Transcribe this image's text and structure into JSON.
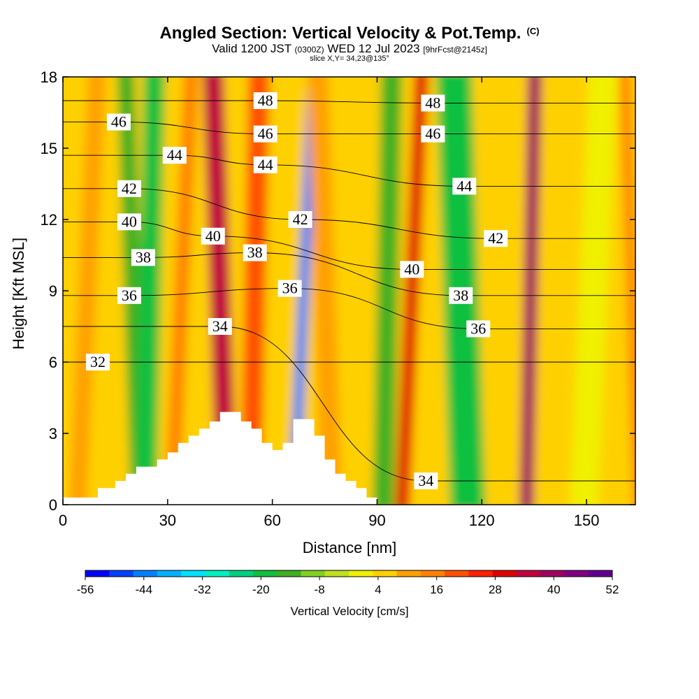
{
  "header": {
    "title": "Angled Section: Vertical Velocity & Pot.Temp.",
    "title_tag": "(C)",
    "valid_prefix": "Valid 1200 JST",
    "valid_utc": "(0300Z)",
    "valid_date": "WED 12 Jul 2023",
    "forecast_tag": "[9hrFcst@2145z]",
    "slice": "slice X,Y= 34,23@135°"
  },
  "chart_data": {
    "type": "heatmap",
    "title": "Angled Section: Vertical Velocity & Pot.Temp.",
    "xlabel": "Distance [nm]",
    "ylabel": "Height [Kft MSL]",
    "xlim": [
      0,
      164
    ],
    "ylim": [
      0,
      18
    ],
    "xticks": [
      0,
      30,
      60,
      90,
      120,
      150
    ],
    "yticks": [
      0,
      3,
      6,
      9,
      12,
      15,
      18
    ],
    "grid": false,
    "colorbar": {
      "label": "Vertical Velocity [cm/s]",
      "ticks": [
        -56,
        -44,
        -32,
        -20,
        -8,
        4,
        16,
        28,
        40,
        52
      ],
      "min": -56,
      "max": 52,
      "colors": [
        "#0000ff",
        "#0040ff",
        "#0080ff",
        "#00b0ff",
        "#00e0ff",
        "#00f0c0",
        "#00d080",
        "#10c040",
        "#40b020",
        "#80d020",
        "#c0e020",
        "#f0f000",
        "#ffd000",
        "#ffa000",
        "#ff8000",
        "#ff5000",
        "#ff2000",
        "#e00000",
        "#c00040",
        "#a00060",
        "#800080",
        "#600090"
      ]
    },
    "series": [
      {
        "name": "Vertical Velocity",
        "bands": [
          {
            "x": 7,
            "w": 5,
            "v": 10
          },
          {
            "x": 20,
            "w": 5,
            "v": -14
          },
          {
            "x": 25,
            "w": 6,
            "v": -18
          },
          {
            "x": 34,
            "w": 4,
            "v": 14
          },
          {
            "x": 45,
            "w": 6,
            "v": 34
          },
          {
            "x": 55,
            "w": 6,
            "v": 22
          },
          {
            "x": 69,
            "w": 3,
            "v": -42
          },
          {
            "x": 75,
            "w": 6,
            "v": 8
          },
          {
            "x": 93,
            "w": 6,
            "v": -16
          },
          {
            "x": 100,
            "w": 4,
            "v": 30
          },
          {
            "x": 114,
            "w": 10,
            "v": -20
          },
          {
            "x": 134,
            "w": 4,
            "v": 42
          },
          {
            "x": 152,
            "w": 8,
            "v": 0
          },
          {
            "x": 163,
            "w": 3,
            "v": 16
          }
        ]
      },
      {
        "name": "Pot.Temp.",
        "levels": [
          {
            "label": "32",
            "x": 10,
            "y": 6.0
          },
          {
            "label": "34",
            "x": 45,
            "y": 7.5
          },
          {
            "label": "34",
            "x": 104,
            "y": 1.0
          },
          {
            "label": "36",
            "x": 19,
            "y": 8.8
          },
          {
            "label": "36",
            "x": 65,
            "y": 9.1
          },
          {
            "label": "36",
            "x": 119,
            "y": 7.4
          },
          {
            "label": "38",
            "x": 23,
            "y": 10.4
          },
          {
            "label": "38",
            "x": 55,
            "y": 10.6
          },
          {
            "label": "38",
            "x": 114,
            "y": 8.8
          },
          {
            "label": "40",
            "x": 19,
            "y": 11.9
          },
          {
            "label": "40",
            "x": 43,
            "y": 11.3
          },
          {
            "label": "40",
            "x": 100,
            "y": 9.9
          },
          {
            "label": "42",
            "x": 19,
            "y": 13.3
          },
          {
            "label": "42",
            "x": 68,
            "y": 12.0
          },
          {
            "label": "42",
            "x": 124,
            "y": 11.2
          },
          {
            "label": "44",
            "x": 32,
            "y": 14.7
          },
          {
            "label": "44",
            "x": 58,
            "y": 14.3
          },
          {
            "label": "44",
            "x": 115,
            "y": 13.4
          },
          {
            "label": "46",
            "x": 16,
            "y": 16.1
          },
          {
            "label": "46",
            "x": 58,
            "y": 15.6
          },
          {
            "label": "46",
            "x": 106,
            "y": 15.6
          },
          {
            "label": "48",
            "x": 58,
            "y": 17.0
          },
          {
            "label": "48",
            "x": 106,
            "y": 16.9
          }
        ]
      }
    ],
    "terrain": {
      "x": [
        0,
        10,
        10,
        15,
        15,
        18,
        18,
        21,
        21,
        27,
        27,
        30,
        30,
        33,
        33,
        36,
        36,
        39,
        39,
        42,
        42,
        45,
        45,
        51,
        51,
        54,
        54,
        57,
        57,
        60,
        60,
        63,
        63,
        66,
        66,
        72,
        72,
        75,
        75,
        78,
        78,
        81,
        81,
        84,
        84,
        87,
        87,
        90
      ],
      "y": [
        0.3,
        0.3,
        0.7,
        0.7,
        1.0,
        1.0,
        1.3,
        1.3,
        1.6,
        1.6,
        1.9,
        1.9,
        2.2,
        2.2,
        2.6,
        2.6,
        2.9,
        2.9,
        3.2,
        3.2,
        3.5,
        3.5,
        3.9,
        3.9,
        3.5,
        3.5,
        3.2,
        3.2,
        2.6,
        2.6,
        2.3,
        2.3,
        2.6,
        2.6,
        3.6,
        3.6,
        2.9,
        2.9,
        1.9,
        1.9,
        1.3,
        1.3,
        1.0,
        1.0,
        0.7,
        0.7,
        0.3,
        0.3
      ]
    }
  }
}
